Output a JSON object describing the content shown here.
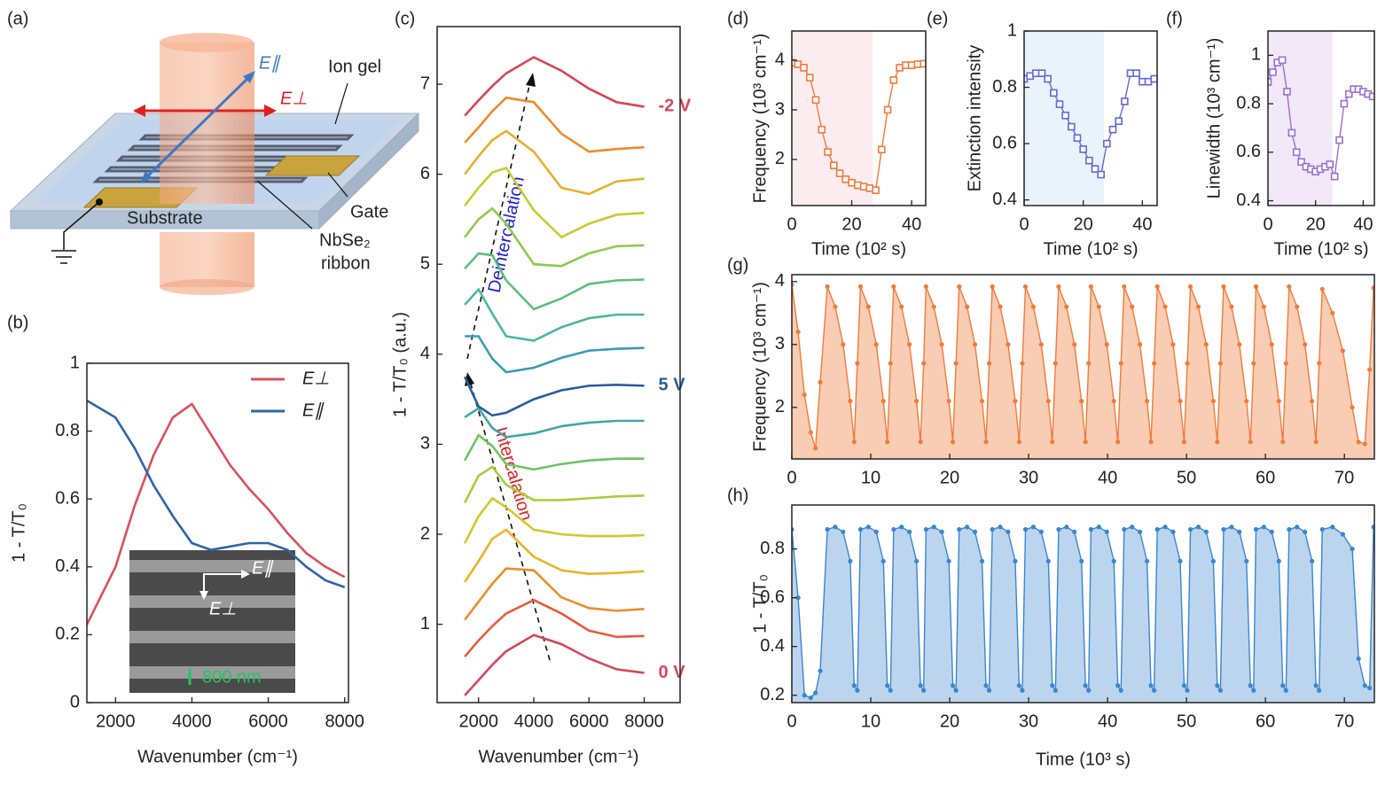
{
  "diagram": {
    "panel": "(a)",
    "labels": {
      "e_par": "E∥",
      "e_perp": "E⊥",
      "ion_gel": "Ion gel",
      "gate": "Gate",
      "substrate": "Substrate",
      "nbse2": "NbSe₂",
      "ribbon": "ribbon"
    }
  },
  "chart_data": [
    {
      "type": "line",
      "panel": "(b)",
      "xlabel": "Wavenumber (cm⁻¹)",
      "ylabel": "1 - T/T₀",
      "x": [
        1250,
        2000,
        2500,
        3000,
        3500,
        4000,
        4500,
        5000,
        5500,
        6000,
        6500,
        7000,
        7500,
        8000
      ],
      "series": [
        {
          "name": "E⊥",
          "color": "#d9505f",
          "values": [
            0.23,
            0.4,
            0.58,
            0.73,
            0.84,
            0.88,
            0.79,
            0.7,
            0.63,
            0.57,
            0.5,
            0.44,
            0.4,
            0.37
          ]
        },
        {
          "name": "E∥",
          "color": "#2e65a8",
          "values": [
            0.89,
            0.84,
            0.75,
            0.64,
            0.55,
            0.47,
            0.45,
            0.46,
            0.47,
            0.47,
            0.45,
            0.4,
            0.36,
            0.34
          ]
        }
      ],
      "xlim": [
        1250,
        8100
      ],
      "ylim": [
        0,
        1
      ],
      "xticks": [
        2000,
        4000,
        6000,
        8000
      ],
      "yticks": [
        0,
        0.2,
        0.4,
        0.6,
        0.8,
        1
      ],
      "legend": "upper right",
      "inset": {
        "labels": [
          "E∥",
          "E⊥",
          "800 nm"
        ]
      }
    },
    {
      "type": "line",
      "panel": "(c)",
      "xlabel": "Wavenumber (cm⁻¹)",
      "ylabel": "1 - T/T₀ (a.u.)",
      "x": [
        1500,
        2000,
        2500,
        3000,
        4000,
        5000,
        6000,
        7000,
        8000
      ],
      "series": [
        {
          "name": "0 V",
          "color": "#d6475a",
          "values": [
            0.21,
            0.38,
            0.55,
            0.7,
            0.88,
            0.78,
            0.62,
            0.5,
            0.46
          ]
        },
        {
          "color": "#ea5a3c",
          "values": [
            0.64,
            0.82,
            0.98,
            1.12,
            1.27,
            1.12,
            0.93,
            0.86,
            0.87
          ]
        },
        {
          "color": "#f08c2a",
          "values": [
            1.05,
            1.25,
            1.45,
            1.62,
            1.6,
            1.3,
            1.18,
            1.15,
            1.17
          ]
        },
        {
          "color": "#e9b52a",
          "values": [
            1.47,
            1.7,
            1.95,
            2.05,
            1.75,
            1.6,
            1.56,
            1.57,
            1.59
          ]
        },
        {
          "color": "#d3c92a",
          "values": [
            1.9,
            2.2,
            2.4,
            2.3,
            2.05,
            2.0,
            1.98,
            1.98,
            1.99
          ]
        },
        {
          "color": "#a8cc3a",
          "values": [
            2.35,
            2.65,
            2.75,
            2.55,
            2.38,
            2.38,
            2.4,
            2.42,
            2.43
          ]
        },
        {
          "color": "#6cc560",
          "values": [
            2.82,
            3.1,
            2.98,
            2.78,
            2.72,
            2.78,
            2.82,
            2.84,
            2.84
          ]
        },
        {
          "color": "#3fa8a8",
          "values": [
            3.3,
            3.4,
            3.18,
            3.08,
            3.12,
            3.2,
            3.24,
            3.26,
            3.26
          ]
        },
        {
          "name": "5 V",
          "color": "#2a5c9a",
          "values": [
            3.75,
            3.42,
            3.32,
            3.35,
            3.5,
            3.6,
            3.65,
            3.66,
            3.65
          ]
        },
        {
          "color": "#3a9cb2",
          "values": [
            4.2,
            4.2,
            3.95,
            3.8,
            3.85,
            3.96,
            4.04,
            4.06,
            4.07
          ]
        },
        {
          "color": "#48b8a0",
          "values": [
            4.55,
            4.72,
            4.45,
            4.2,
            4.15,
            4.3,
            4.4,
            4.44,
            4.44
          ]
        },
        {
          "color": "#5cc07a",
          "values": [
            4.95,
            5.12,
            5.1,
            4.82,
            4.5,
            4.62,
            4.78,
            4.82,
            4.83
          ]
        },
        {
          "color": "#8ccc4a",
          "values": [
            5.3,
            5.5,
            5.62,
            5.45,
            5.0,
            4.98,
            5.12,
            5.2,
            5.21
          ]
        },
        {
          "color": "#c8cc2c",
          "values": [
            5.65,
            5.85,
            6.02,
            6.07,
            5.6,
            5.3,
            5.45,
            5.55,
            5.57
          ]
        },
        {
          "color": "#e9b02a",
          "values": [
            6.0,
            6.2,
            6.38,
            6.48,
            6.25,
            5.85,
            5.78,
            5.92,
            5.95
          ]
        },
        {
          "color": "#f08a2a",
          "values": [
            6.35,
            6.52,
            6.7,
            6.85,
            6.8,
            6.45,
            6.25,
            6.28,
            6.3
          ]
        },
        {
          "name": "-2 V",
          "color": "#d6475a",
          "values": [
            6.65,
            6.82,
            6.98,
            7.12,
            7.3,
            7.15,
            6.95,
            6.8,
            6.75
          ]
        }
      ],
      "xlim": [
        500,
        9300
      ],
      "ylim": [
        0.13,
        7.64
      ],
      "xticks": [
        2000,
        4000,
        6000,
        8000
      ],
      "yticks": [
        1,
        2,
        3,
        4,
        5,
        6,
        7
      ],
      "annotations": [
        "Deintercalation",
        "Intercalation"
      ]
    },
    {
      "type": "scatter",
      "panel": "(d)",
      "xlabel": "Time (10² s)",
      "ylabel": "Frequency (10³ cm⁻¹)",
      "x": [
        0,
        2,
        4,
        6,
        8,
        10,
        12,
        14,
        16,
        18,
        20,
        22,
        24,
        26,
        28,
        30,
        32,
        34,
        36,
        38,
        40,
        42,
        44
      ],
      "series": [
        {
          "color": "#f07b3c",
          "values": [
            3.95,
            3.92,
            3.85,
            3.65,
            3.2,
            2.6,
            2.15,
            1.88,
            1.72,
            1.6,
            1.53,
            1.48,
            1.45,
            1.42,
            1.38,
            2.2,
            3.0,
            3.6,
            3.85,
            3.9,
            3.9,
            3.92,
            3.93
          ]
        }
      ],
      "shade": {
        "xrange": [
          0,
          27
        ],
        "color": "#fdecef"
      },
      "xlim": [
        0,
        44.7
      ],
      "ylim": [
        1.07,
        4.59
      ],
      "xticks": [
        0,
        20,
        40
      ],
      "yticks": [
        2,
        3,
        4
      ]
    },
    {
      "type": "scatter",
      "panel": "(e)",
      "xlabel": "Time (10² s)",
      "ylabel": "Extinction intensity",
      "x": [
        0,
        2,
        4,
        6,
        8,
        10,
        12,
        14,
        16,
        18,
        20,
        22,
        24,
        26,
        28,
        30,
        32,
        34,
        36,
        38,
        40,
        42,
        44
      ],
      "series": [
        {
          "color": "#6468d8",
          "values": [
            0.83,
            0.84,
            0.85,
            0.85,
            0.83,
            0.78,
            0.74,
            0.7,
            0.66,
            0.62,
            0.58,
            0.54,
            0.51,
            0.49,
            0.6,
            0.65,
            0.68,
            0.75,
            0.85,
            0.85,
            0.82,
            0.82,
            0.83
          ]
        }
      ],
      "shade": {
        "xrange": [
          0,
          27
        ],
        "color": "#e9f3fb"
      },
      "xlim": [
        0,
        45
      ],
      "ylim": [
        0.38,
        1.0
      ],
      "xticks": [
        0,
        20,
        40
      ],
      "yticks": [
        0.4,
        0.6,
        0.8,
        1
      ]
    },
    {
      "type": "scatter",
      "panel": "(f)",
      "xlabel": "Time (10² s)",
      "ylabel": "Linewidth (10³ cm⁻¹)",
      "x": [
        0,
        2,
        4,
        6,
        8,
        10,
        12,
        14,
        16,
        18,
        20,
        22,
        24,
        26,
        28,
        30,
        32,
        34,
        36,
        38,
        40,
        42,
        44
      ],
      "series": [
        {
          "color": "#9b6fd0",
          "values": [
            0.89,
            0.93,
            0.97,
            0.98,
            0.85,
            0.68,
            0.6,
            0.56,
            0.54,
            0.53,
            0.52,
            0.53,
            0.54,
            0.55,
            0.5,
            0.65,
            0.8,
            0.84,
            0.86,
            0.86,
            0.85,
            0.84,
            0.83
          ]
        }
      ],
      "shade": {
        "xrange": [
          0,
          27
        ],
        "color": "#f1e8f8"
      },
      "xlim": [
        0,
        44.7
      ],
      "ylim": [
        0.38,
        1.1
      ],
      "xticks": [
        0,
        20,
        40
      ],
      "yticks": [
        0.4,
        0.6,
        0.8,
        1
      ]
    },
    {
      "type": "area",
      "panel": "(g)",
      "ylabel": "Frequency (10³ cm⁻¹)",
      "x": [
        0,
        0.8,
        1.6,
        2.4,
        3.0,
        3.6,
        4.5,
        5.5,
        6.5,
        7.4,
        7.9,
        8.3,
        8.7,
        9.7,
        10.7,
        11.6,
        12.1,
        12.5,
        12.9,
        13.9,
        14.9,
        15.8,
        16.3,
        16.7,
        17.0,
        18.0,
        19.0,
        19.9,
        20.4,
        20.8,
        21.2,
        22.2,
        23.2,
        24.1,
        24.6,
        25.0,
        25.4,
        26.4,
        27.4,
        28.3,
        28.8,
        29.2,
        29.6,
        30.6,
        31.6,
        32.5,
        33.0,
        33.4,
        33.8,
        34.8,
        35.8,
        36.7,
        37.2,
        37.6,
        37.9,
        38.9,
        39.9,
        40.8,
        41.3,
        41.7,
        42.1,
        43.1,
        44.1,
        45.0,
        45.5,
        45.9,
        46.3,
        47.3,
        48.3,
        49.2,
        49.7,
        50.1,
        50.5,
        51.5,
        52.5,
        53.4,
        53.9,
        54.3,
        54.7,
        55.7,
        56.7,
        57.6,
        58.1,
        58.5,
        58.8,
        59.8,
        60.8,
        61.7,
        62.2,
        62.6,
        63.0,
        64.0,
        65.0,
        65.9,
        66.4,
        66.8,
        67.2,
        68.5,
        69.8,
        71.0,
        71.8,
        72.6,
        73.2,
        73.7
      ],
      "series": [
        {
          "color": "#f07b3c",
          "fill": "#f9cdb3",
          "values": [
            3.95,
            3.2,
            2.2,
            1.6,
            1.35,
            2.4,
            3.92,
            3.6,
            3.0,
            2.1,
            1.45,
            2.7,
            3.92,
            3.6,
            3.0,
            2.1,
            1.45,
            2.7,
            3.92,
            3.6,
            3.0,
            2.1,
            1.45,
            2.7,
            3.92,
            3.6,
            3.0,
            2.1,
            1.45,
            2.7,
            3.92,
            3.6,
            3.0,
            2.1,
            1.45,
            2.7,
            3.92,
            3.6,
            3.0,
            2.1,
            1.45,
            2.7,
            3.92,
            3.6,
            3.0,
            2.1,
            1.45,
            2.7,
            3.92,
            3.6,
            3.0,
            2.1,
            1.45,
            2.7,
            3.92,
            3.6,
            3.0,
            2.1,
            1.45,
            2.7,
            3.92,
            3.6,
            3.0,
            2.1,
            1.45,
            2.7,
            3.92,
            3.6,
            3.0,
            2.1,
            1.45,
            2.7,
            3.92,
            3.6,
            3.0,
            2.1,
            1.45,
            2.7,
            3.92,
            3.6,
            3.0,
            2.1,
            1.45,
            2.7,
            3.92,
            3.6,
            3.0,
            2.1,
            1.45,
            2.7,
            3.92,
            3.6,
            3.0,
            2.1,
            1.45,
            2.7,
            3.88,
            3.5,
            2.9,
            2.0,
            1.45,
            1.42,
            2.6,
            3.9
          ]
        }
      ],
      "xlim": [
        0,
        73.8
      ],
      "ylim": [
        1.18,
        4.11
      ],
      "xticks": [
        0,
        10,
        20,
        30,
        40,
        50,
        60,
        70
      ],
      "yticks": [
        2,
        3,
        4
      ]
    },
    {
      "type": "area",
      "panel": "(h)",
      "xlabel": "Time (10³ s)",
      "ylabel": "1 - T/T₀",
      "x": [
        0,
        0.8,
        1.6,
        2.4,
        3.0,
        3.6,
        4.5,
        5.5,
        6.5,
        7.4,
        7.9,
        8.3,
        8.7,
        9.7,
        10.7,
        11.6,
        12.1,
        12.5,
        12.9,
        13.9,
        14.9,
        15.8,
        16.3,
        16.7,
        17.0,
        18.0,
        19.0,
        19.9,
        20.4,
        20.8,
        21.2,
        22.2,
        23.2,
        24.1,
        24.6,
        25.0,
        25.4,
        26.4,
        27.4,
        28.3,
        28.8,
        29.2,
        29.6,
        30.6,
        31.6,
        32.5,
        33.0,
        33.4,
        33.8,
        34.8,
        35.8,
        36.7,
        37.2,
        37.6,
        37.9,
        38.9,
        39.9,
        40.8,
        41.3,
        41.7,
        42.1,
        43.1,
        44.1,
        45.0,
        45.5,
        45.9,
        46.3,
        47.3,
        48.3,
        49.2,
        49.7,
        50.1,
        50.5,
        51.5,
        52.5,
        53.4,
        53.9,
        54.3,
        54.7,
        55.7,
        56.7,
        57.6,
        58.1,
        58.5,
        58.8,
        59.8,
        60.8,
        61.7,
        62.2,
        62.6,
        63.0,
        64.0,
        65.0,
        65.9,
        66.4,
        66.8,
        67.2,
        68.5,
        69.8,
        71.0,
        71.8,
        72.6,
        73.2,
        73.7
      ],
      "series": [
        {
          "color": "#3a86cf",
          "fill": "#bcd5ee",
          "values": [
            0.88,
            0.6,
            0.2,
            0.19,
            0.21,
            0.3,
            0.88,
            0.89,
            0.87,
            0.75,
            0.24,
            0.22,
            0.88,
            0.89,
            0.87,
            0.75,
            0.24,
            0.22,
            0.88,
            0.89,
            0.87,
            0.75,
            0.24,
            0.22,
            0.88,
            0.89,
            0.87,
            0.75,
            0.24,
            0.22,
            0.88,
            0.89,
            0.87,
            0.75,
            0.24,
            0.22,
            0.88,
            0.89,
            0.87,
            0.75,
            0.24,
            0.22,
            0.88,
            0.89,
            0.87,
            0.75,
            0.24,
            0.22,
            0.88,
            0.89,
            0.87,
            0.75,
            0.24,
            0.22,
            0.88,
            0.89,
            0.87,
            0.75,
            0.24,
            0.22,
            0.88,
            0.89,
            0.87,
            0.75,
            0.24,
            0.22,
            0.88,
            0.89,
            0.87,
            0.75,
            0.24,
            0.22,
            0.88,
            0.89,
            0.87,
            0.75,
            0.24,
            0.22,
            0.88,
            0.89,
            0.87,
            0.75,
            0.24,
            0.22,
            0.88,
            0.89,
            0.87,
            0.75,
            0.24,
            0.22,
            0.88,
            0.89,
            0.87,
            0.75,
            0.24,
            0.22,
            0.88,
            0.89,
            0.86,
            0.8,
            0.35,
            0.24,
            0.23,
            0.89
          ]
        }
      ],
      "xlim": [
        0,
        73.8
      ],
      "ylim": [
        0.17,
        0.98
      ],
      "xticks": [
        0,
        10,
        20,
        30,
        40,
        50,
        60,
        70
      ],
      "yticks": [
        0.2,
        0.4,
        0.6,
        0.8
      ]
    }
  ]
}
